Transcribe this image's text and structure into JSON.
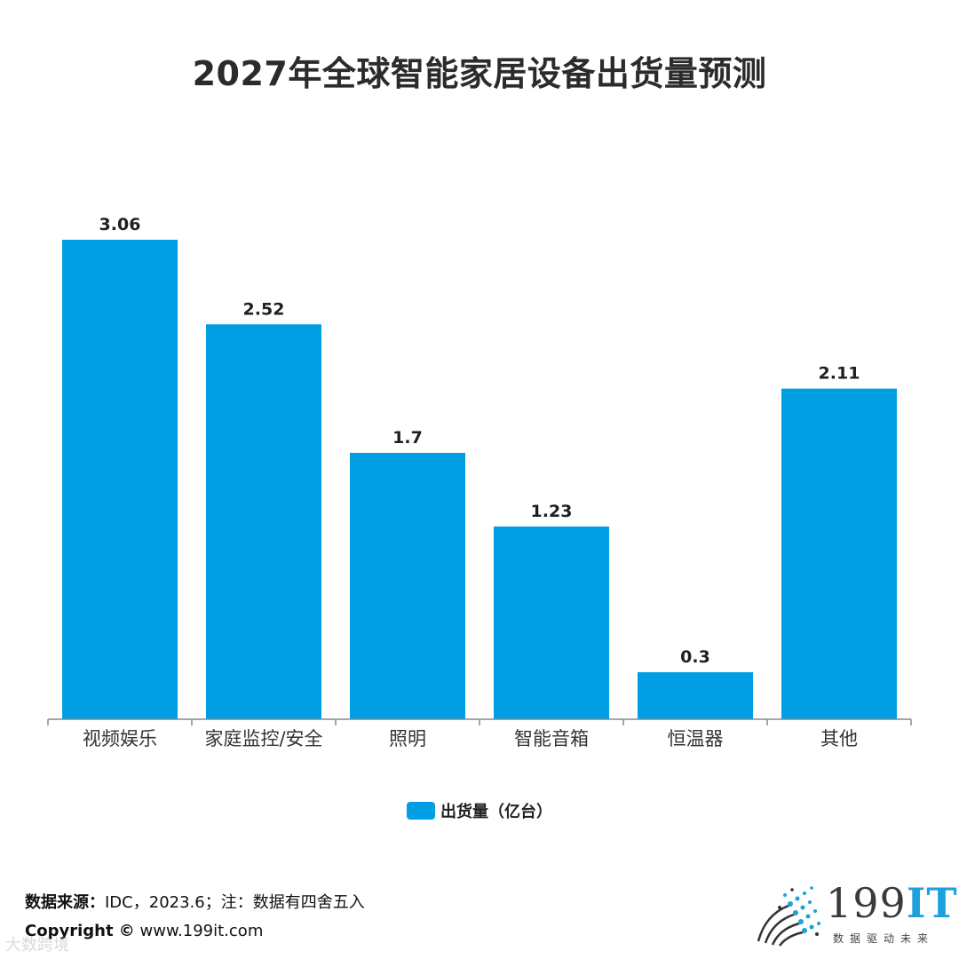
{
  "title": "2027年全球智能家居设备出货量预测",
  "legend": {
    "label": "出货量（亿台）"
  },
  "footer": {
    "source_label": "数据来源：",
    "source_text": "IDC，2023.6；注：数据有四舍五入",
    "copyright_label": "Copyright ©",
    "copyright_text": " www.199it.com"
  },
  "logo": {
    "name": "199IT",
    "name_main": "199",
    "name_accent": "IT",
    "tagline": "数据驱动未来"
  },
  "watermark": "大数跨境",
  "colors": {
    "bar": "#009fe3",
    "axis": "#888888"
  },
  "chart_data": {
    "type": "bar",
    "title": "2027年全球智能家居设备出货量预测",
    "categories": [
      "视频娱乐",
      "家庭监控/安全",
      "照明",
      "智能音箱",
      "恒温器",
      "其他"
    ],
    "series": [
      {
        "name": "出货量（亿台）",
        "values": [
          3.06,
          2.52,
          1.7,
          1.23,
          0.3,
          2.11
        ]
      }
    ],
    "ylim": [
      0,
      3.06
    ],
    "grid": false,
    "legend_position": "bottom"
  }
}
